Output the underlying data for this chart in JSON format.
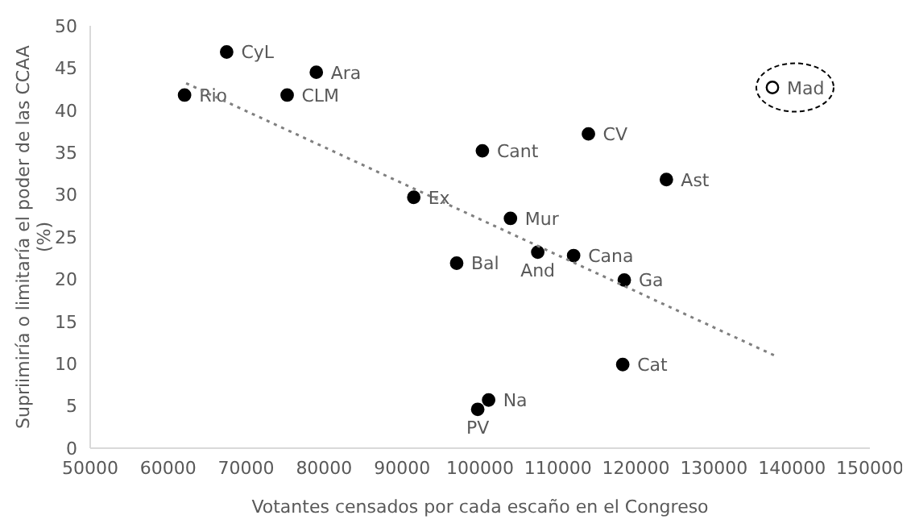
{
  "chart_data": {
    "type": "scatter",
    "xlabel": "Votantes  censados por cada escaño en el Congreso",
    "ylabel": "Supriimiría o  limitaría el poder de las CCAA (%)",
    "xlim": [
      50000,
      150000
    ],
    "xticks": [
      50000,
      60000,
      70000,
      80000,
      90000,
      100000,
      110000,
      120000,
      130000,
      140000,
      150000
    ],
    "ylim": [
      0,
      50
    ],
    "yticks": [
      0,
      5,
      10,
      15,
      20,
      25,
      30,
      35,
      40,
      45,
      50
    ],
    "grid": false,
    "legend": false,
    "marker": "circle",
    "series": [
      {
        "color": "#000000",
        "x": [
          67500,
          79000,
          75260,
          62100,
          91500,
          97000,
          100300,
          113900,
          123900,
          103900,
          107400,
          112000,
          118500,
          118300,
          101100,
          99700
        ],
        "values": [
          46.9,
          44.5,
          41.8,
          41.8,
          29.7,
          21.9,
          35.2,
          37.2,
          31.8,
          27.2,
          23.2,
          22.8,
          19.9,
          9.9,
          5.7,
          4.6
        ]
      },
      {
        "color": "#ffffff",
        "x": [
          137500
        ],
        "values": [
          42.7
        ]
      },
      {
        "type": "line",
        "color": "#7f7f7f",
        "line_style": "dotted",
        "marker": "none",
        "x": [
          62300,
          137700
        ],
        "values": [
          43.2,
          11.0
        ]
      }
    ],
    "annotations": [
      {
        "text": "CyL",
        "x": 67500,
        "y": 46.9
      },
      {
        "text": "Ara",
        "x": 79000,
        "y": 44.5
      },
      {
        "text": "CLM",
        "x": 75260,
        "y": 41.8
      },
      {
        "text": "Rio",
        "x": 62100,
        "y": 41.8
      },
      {
        "text": "Ex",
        "x": 91500,
        "y": 29.7
      },
      {
        "text": "Bal",
        "x": 97000,
        "y": 21.9
      },
      {
        "text": "Cant",
        "x": 100300,
        "y": 35.2
      },
      {
        "text": "CV",
        "x": 113900,
        "y": 37.2
      },
      {
        "text": "Ast",
        "x": 123900,
        "y": 31.8
      },
      {
        "text": "Mur",
        "x": 103900,
        "y": 27.2
      },
      {
        "text": "And",
        "x": 107400,
        "y": 23.2
      },
      {
        "text": "Cana",
        "x": 112000,
        "y": 22.8
      },
      {
        "text": "Ga",
        "x": 118500,
        "y": 19.9
      },
      {
        "text": "Cat",
        "x": 118300,
        "y": 9.9
      },
      {
        "text": "Na",
        "x": 101100,
        "y": 5.7
      },
      {
        "text": "PV",
        "x": 99700,
        "y": 4.6
      },
      {
        "text": "Mad",
        "x": 137500,
        "y": 42.7
      }
    ]
  }
}
